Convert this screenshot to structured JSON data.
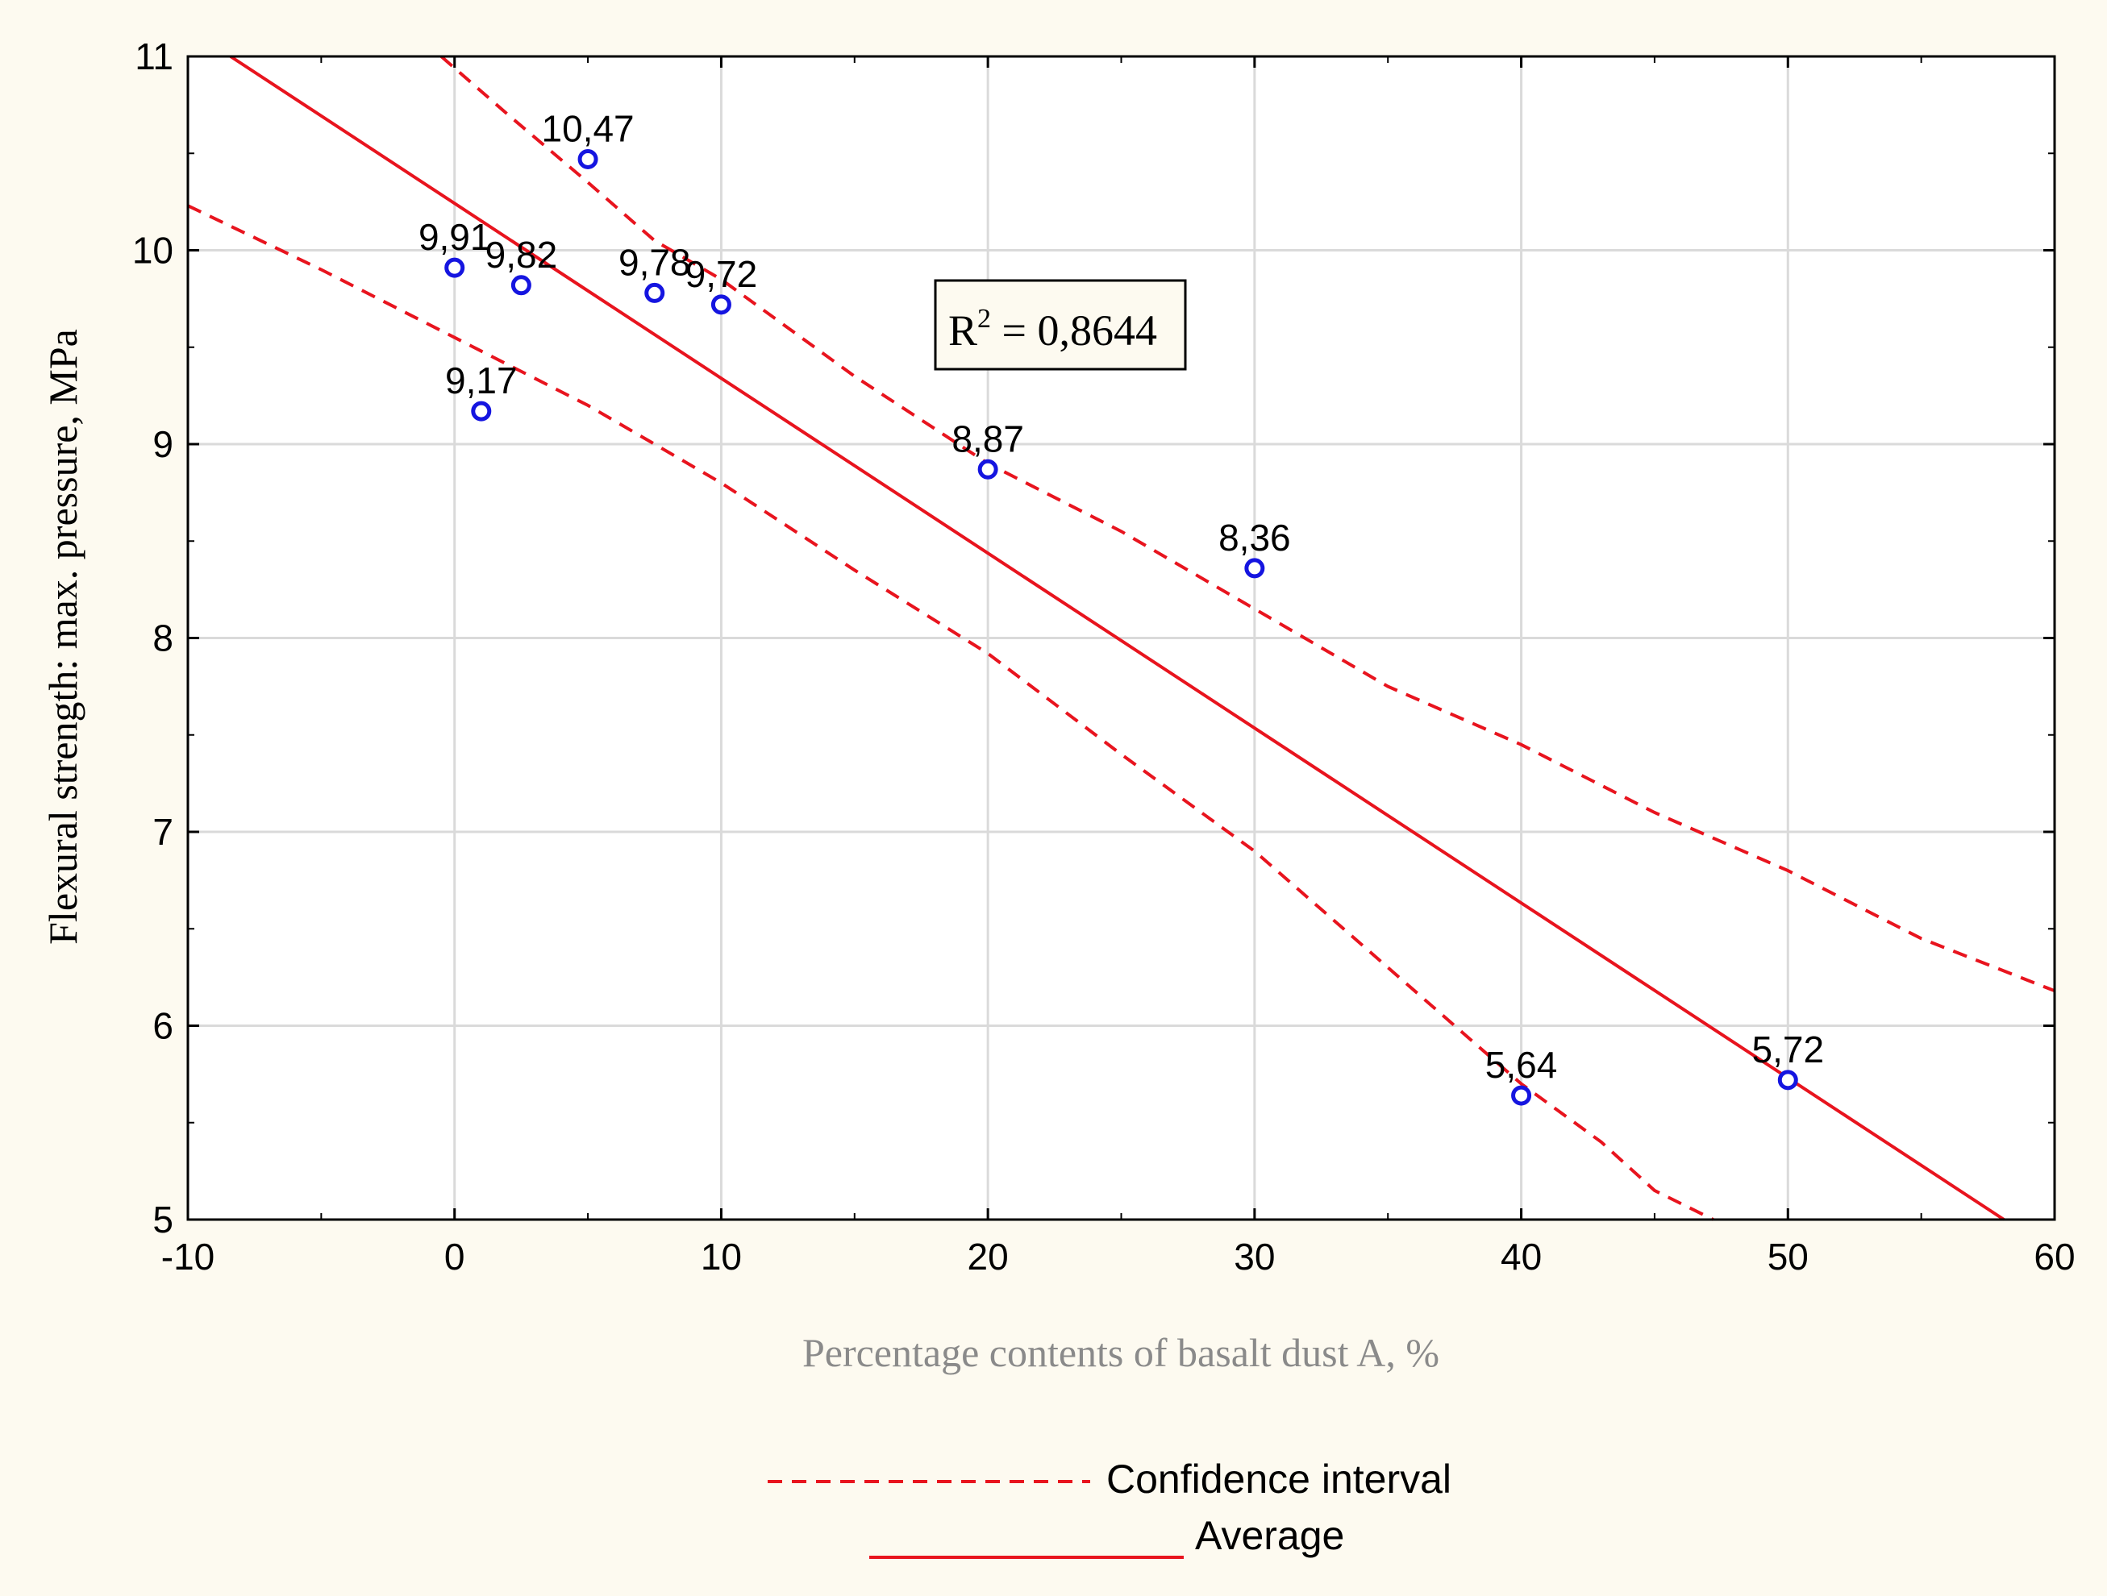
{
  "chart_data": {
    "type": "scatter",
    "title": "",
    "xlabel": "Percentage contents of basalt dust A, %",
    "ylabel": "Flexural strength: max. pressure, MPa",
    "xlim": [
      -10,
      60
    ],
    "ylim": [
      5,
      11
    ],
    "x_ticks": [
      "-10",
      "0",
      "10",
      "20",
      "30",
      "40",
      "50",
      "60"
    ],
    "y_ticks": [
      "5",
      "6",
      "7",
      "8",
      "9",
      "10",
      "11"
    ],
    "grid": true,
    "points": [
      {
        "x": 0,
        "y": 9.91,
        "label": "9,91"
      },
      {
        "x": 1,
        "y": 9.17,
        "label": "9,17"
      },
      {
        "x": 2.5,
        "y": 9.82,
        "label": "9,82"
      },
      {
        "x": 5,
        "y": 10.47,
        "label": "10,47"
      },
      {
        "x": 7.5,
        "y": 9.78,
        "label": "9,78"
      },
      {
        "x": 10,
        "y": 9.72,
        "label": "9,72"
      },
      {
        "x": 20,
        "y": 8.87,
        "label": "8,87"
      },
      {
        "x": 30,
        "y": 8.36,
        "label": "8,36"
      },
      {
        "x": 40,
        "y": 5.64,
        "label": "5,64"
      },
      {
        "x": 50,
        "y": 5.72,
        "label": "5,72"
      }
    ],
    "fit_line": {
      "x": [
        -8.4,
        58.1
      ],
      "y": [
        11.0,
        5.0
      ]
    },
    "ci_upper": {
      "x": [
        -0.5,
        2,
        5,
        7.5,
        10,
        15,
        20,
        25,
        30,
        35,
        40,
        45,
        50,
        55,
        60
      ],
      "y": [
        11.0,
        10.7,
        10.35,
        10.05,
        9.85,
        9.35,
        8.9,
        8.55,
        8.15,
        7.75,
        7.45,
        7.1,
        6.8,
        6.45,
        6.18
      ]
    },
    "ci_lower": {
      "x": [
        -10,
        -5,
        0,
        5,
        10,
        15,
        20,
        25,
        30,
        35,
        40,
        43,
        45,
        47.2
      ],
      "y": [
        10.23,
        9.9,
        9.55,
        9.2,
        8.8,
        8.35,
        7.92,
        7.4,
        6.9,
        6.3,
        5.7,
        5.4,
        5.15,
        5.0
      ]
    },
    "legend": [
      {
        "label": "Confidence interval",
        "style": "dashed"
      },
      {
        "label": "Average",
        "style": "solid"
      }
    ],
    "annotation": {
      "text_base": "R",
      "text_sup": "2",
      "text_rest": " = 0,8644"
    },
    "colors": {
      "line": "#e8141e",
      "point": "#1515e0",
      "grid": "#dadada",
      "axis": "#000000",
      "xlabel": "#8a8a8a",
      "background": "#fdfaf0"
    }
  }
}
